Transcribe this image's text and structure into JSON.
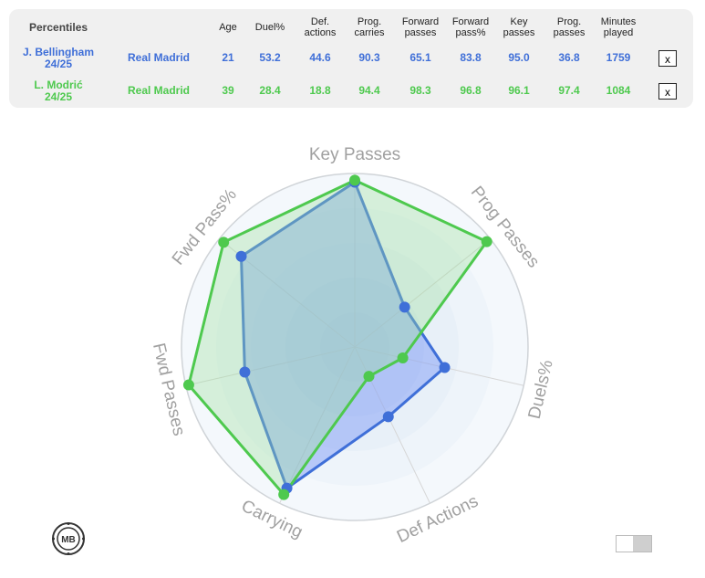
{
  "table": {
    "title": "Percentiles",
    "columns": [
      "Age",
      "Duel%",
      "Def.\nactions",
      "Prog.\ncarries",
      "Forward\npasses",
      "Forward\npass%",
      "Key\npasses",
      "Prog.\npasses",
      "Minutes\nplayed"
    ],
    "rows": [
      {
        "name": "J. Bellingham",
        "season": "24/25",
        "club": "Real Madrid",
        "values": [
          "21",
          "53.2",
          "44.6",
          "90.3",
          "65.1",
          "83.8",
          "95.0",
          "36.8",
          "1759"
        ],
        "remove_label": "x",
        "color": "#3f6fd8"
      },
      {
        "name": "L. Modrić",
        "season": "24/25",
        "club": "Real Madrid",
        "values": [
          "39",
          "28.4",
          "18.8",
          "94.4",
          "98.3",
          "96.8",
          "96.1",
          "97.4",
          "1084"
        ],
        "remove_label": "x",
        "color": "#4ec94e"
      }
    ]
  },
  "chart_data": {
    "type": "radar",
    "axes": [
      "Key Passes",
      "Prog Passes",
      "Duels%",
      "Def Actions",
      "Carrying",
      "Fwd Passes",
      "Fwd Pass%"
    ],
    "range": [
      0,
      100
    ],
    "series": [
      {
        "name": "J. Bellingham 24/25",
        "color": "#3f6fd8",
        "fill": "#7f9cf5",
        "values": [
          95.0,
          36.8,
          53.2,
          44.6,
          90.3,
          65.1,
          83.8
        ]
      },
      {
        "name": "L. Modrić 24/25",
        "color": "#4ec94e",
        "fill": "#9be09b",
        "values": [
          96.1,
          97.4,
          28.4,
          18.8,
          94.4,
          98.3,
          96.8
        ]
      }
    ]
  },
  "logo": {
    "text": "MB"
  },
  "toggle": {
    "state": "on"
  }
}
